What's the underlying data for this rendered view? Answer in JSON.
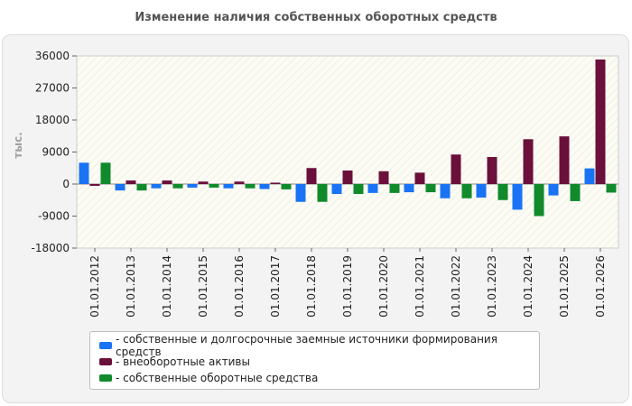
{
  "chart_data": {
    "type": "bar",
    "title": "Изменение наличия собственных оборотных средств",
    "ylabel": "тыс.",
    "xlabel": "",
    "ylim": [
      -18000,
      36000
    ],
    "yticks": [
      "36000",
      "27000",
      "18000",
      "9000",
      "0",
      "-9000",
      "-18000"
    ],
    "grid": false,
    "legend_position": "bottom",
    "categories": [
      "01.01.2012",
      "01.01.2013",
      "01.01.2014",
      "01.01.2015",
      "01.01.2016",
      "01.01.2017",
      "01.01.2018",
      "01.01.2019",
      "01.01.2020",
      "01.01.2021",
      "01.01.2022",
      "01.01.2023",
      "01.01.2024",
      "01.01.2025",
      "01.01.2026"
    ],
    "series": [
      {
        "name": "- собственные и долгосрочные заемные источники формирования средств",
        "color": "#1a73f5",
        "values": [
          6000,
          -1800,
          -1200,
          -1000,
          -1200,
          -1400,
          -5000,
          -2800,
          -2500,
          -2300,
          -4000,
          -3800,
          -7200,
          -3200,
          4400
        ]
      },
      {
        "name": "- внеоборотные активы",
        "color": "#6b0f3b",
        "values": [
          -500,
          1000,
          1000,
          700,
          700,
          400,
          4500,
          3800,
          3600,
          3200,
          8300,
          7600,
          12600,
          13400,
          35000
        ]
      },
      {
        "name": "- собственные оборотные средства",
        "color": "#118a2c",
        "values": [
          6000,
          -1800,
          -1200,
          -1000,
          -1200,
          -1500,
          -5000,
          -2800,
          -2500,
          -2300,
          -4000,
          -4500,
          -9000,
          -4800,
          -2400
        ]
      }
    ]
  }
}
